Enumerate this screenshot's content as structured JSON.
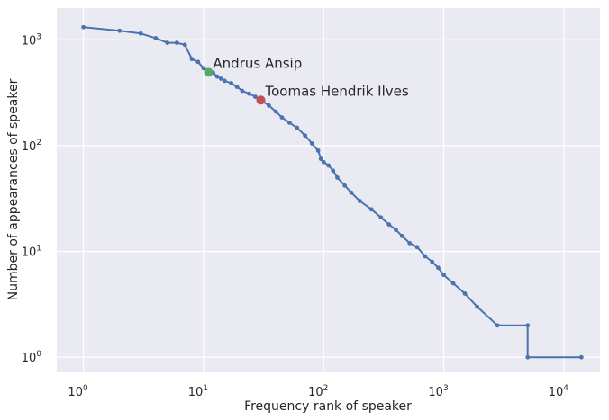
{
  "chart_data": {
    "type": "line",
    "title": "",
    "xlabel": "Frequency rank of speaker",
    "ylabel": "Number of appearances of speaker",
    "x_scale": "log",
    "y_scale": "log",
    "xlim": [
      0.6,
      20000
    ],
    "ylim": [
      0.72,
      2000
    ],
    "grid": true,
    "x_ticks": [
      {
        "value": 1,
        "base": "10",
        "exp": "0"
      },
      {
        "value": 10,
        "base": "10",
        "exp": "1"
      },
      {
        "value": 100,
        "base": "10",
        "exp": "2"
      },
      {
        "value": 1000,
        "base": "10",
        "exp": "3"
      },
      {
        "value": 10000,
        "base": "10",
        "exp": "4"
      }
    ],
    "y_ticks": [
      {
        "value": 1,
        "base": "10",
        "exp": "0"
      },
      {
        "value": 10,
        "base": "10",
        "exp": "1"
      },
      {
        "value": 100,
        "base": "10",
        "exp": "2"
      },
      {
        "value": 1000,
        "base": "10",
        "exp": "3"
      }
    ],
    "line_color": "#4C72B0",
    "series": [
      {
        "points": [
          [
            1,
            1320
          ],
          [
            2,
            1220
          ],
          [
            3,
            1150
          ],
          [
            4,
            1040
          ],
          [
            5,
            940
          ],
          [
            6,
            940
          ],
          [
            7,
            900
          ],
          [
            8,
            660
          ],
          [
            9,
            620
          ],
          [
            10,
            540
          ],
          [
            11,
            510
          ],
          [
            12,
            490
          ],
          [
            13,
            450
          ],
          [
            14,
            430
          ],
          [
            15,
            410
          ],
          [
            17,
            390
          ],
          [
            19,
            360
          ],
          [
            21,
            330
          ],
          [
            24,
            310
          ],
          [
            27,
            290
          ],
          [
            30,
            270
          ],
          [
            35,
            240
          ],
          [
            40,
            210
          ],
          [
            45,
            185
          ],
          [
            52,
            165
          ],
          [
            60,
            148
          ],
          [
            70,
            125
          ],
          [
            80,
            105
          ],
          [
            90,
            90
          ],
          [
            95,
            75
          ],
          [
            100,
            70
          ],
          [
            110,
            65
          ],
          [
            120,
            58
          ],
          [
            130,
            50
          ],
          [
            150,
            42
          ],
          [
            170,
            36
          ],
          [
            200,
            30
          ],
          [
            250,
            25
          ],
          [
            300,
            21
          ],
          [
            350,
            18
          ],
          [
            400,
            16
          ],
          [
            450,
            14
          ],
          [
            520,
            12
          ],
          [
            600,
            11
          ],
          [
            700,
            9
          ],
          [
            800,
            8
          ],
          [
            900,
            7
          ],
          [
            1000,
            6
          ],
          [
            1200,
            5
          ],
          [
            1500,
            4
          ],
          [
            1900,
            3
          ],
          [
            2800,
            2
          ],
          [
            5000,
            2
          ],
          [
            5000,
            1
          ],
          [
            14000,
            1
          ]
        ]
      }
    ],
    "annotations": [
      {
        "label": "Andrus Ansip",
        "x": 11,
        "y": 495,
        "color": "#55A868"
      },
      {
        "label": "Toomas Hendrik Ilves",
        "x": 30,
        "y": 270,
        "color": "#C44E52"
      }
    ]
  }
}
